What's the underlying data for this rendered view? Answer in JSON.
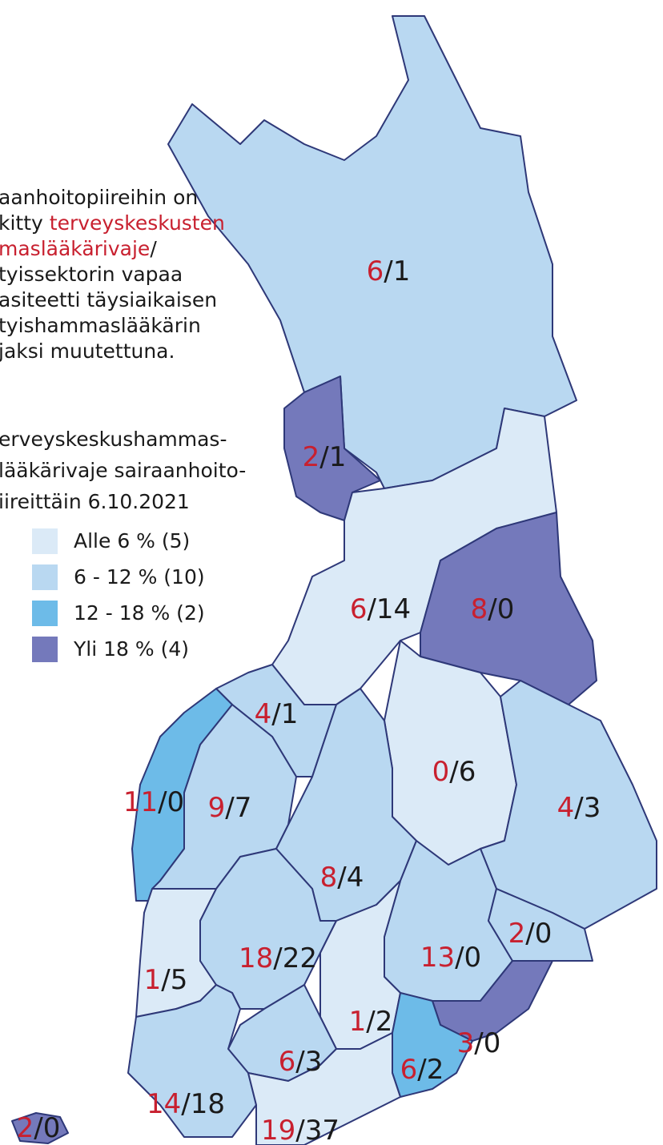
{
  "description": {
    "lines": [
      [
        {
          "text": "aanhoitopiireihin on",
          "highlight": false
        }
      ],
      [
        {
          "text": "kitty ",
          "highlight": false
        },
        {
          "text": "terveyskeskusten",
          "highlight": true
        }
      ],
      [
        {
          "text": "maslääkärivaje",
          "highlight": true
        },
        {
          "text": "/",
          "highlight": false
        }
      ],
      [
        {
          "text": "tyissektorin vapaa",
          "highlight": false
        }
      ],
      [
        {
          "text": "asiteetti täysiaikaisen",
          "highlight": false
        }
      ],
      [
        {
          "text": "tyishammaslääkärin",
          "highlight": false
        }
      ],
      [
        {
          "text": "jaksi muutettuna.",
          "highlight": false
        }
      ]
    ]
  },
  "title": [
    "erveyskeskushammas-",
    "lääkärivaje sairaanhoito-",
    "iireittäin 6.10.2021"
  ],
  "legend": [
    {
      "label": "Alle 6 % (5)",
      "color": "#dbeaf7"
    },
    {
      "label": "6 - 12 % (10)",
      "color": "#b9d8f1"
    },
    {
      "label": "12 - 18 % (2)",
      "color": "#6dbbe8"
    },
    {
      "label": "Yli 18 % (4)",
      "color": "#7479bb"
    }
  ],
  "separator": "/",
  "regions": [
    {
      "gap": 6,
      "free": 1,
      "category": 1
    },
    {
      "gap": 2,
      "free": 1,
      "category": 3
    },
    {
      "gap": 6,
      "free": 14,
      "category": 0
    },
    {
      "gap": 8,
      "free": 0,
      "category": 3
    },
    {
      "gap": 4,
      "free": 1,
      "category": 1
    },
    {
      "gap": 11,
      "free": 0,
      "category": 2
    },
    {
      "gap": 9,
      "free": 7,
      "category": 1
    },
    {
      "gap": 0,
      "free": 6,
      "category": 0
    },
    {
      "gap": 4,
      "free": 3,
      "category": 1
    },
    {
      "gap": 8,
      "free": 4,
      "category": 1
    },
    {
      "gap": 13,
      "free": 0,
      "category": 1
    },
    {
      "gap": 2,
      "free": 0,
      "category": 1
    },
    {
      "gap": 1,
      "free": 5,
      "category": 0
    },
    {
      "gap": 18,
      "free": 22,
      "category": 1
    },
    {
      "gap": 1,
      "free": 2,
      "category": 0
    },
    {
      "gap": 3,
      "free": 0,
      "category": 3
    },
    {
      "gap": 6,
      "free": 3,
      "category": 1
    },
    {
      "gap": 6,
      "free": 2,
      "category": 2
    },
    {
      "gap": 14,
      "free": 18,
      "category": 1
    },
    {
      "gap": 19,
      "free": 37,
      "category": 0
    },
    {
      "gap": 2,
      "free": 0,
      "category": 3
    }
  ]
}
